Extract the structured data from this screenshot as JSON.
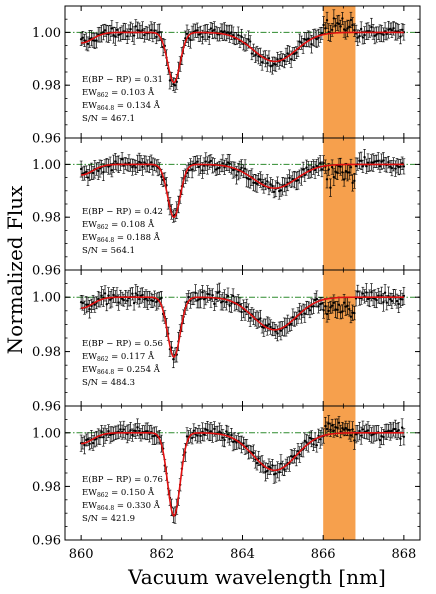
{
  "chart_data": {
    "type": "line",
    "title": "",
    "xlabel": "Vacuum wavelength [nm]",
    "ylabel": "Normalized Flux",
    "xlim": [
      859.6,
      868.4
    ],
    "ylim": [
      0.96,
      1.01
    ],
    "xticks": [
      860,
      862,
      864,
      866,
      868
    ],
    "xtick_labels": [
      "860",
      "862",
      "864",
      "866",
      "868"
    ],
    "yticks": [
      0.96,
      0.98,
      1.0
    ],
    "ytick_labels": [
      "0.96",
      "0.98",
      "1.00"
    ],
    "grid": false,
    "reference_line": {
      "y": 1.0,
      "color": "#2e8b2e",
      "style": "dash-dot"
    },
    "highlight_band": {
      "x_start": 866.0,
      "x_end": 866.8,
      "color": "#f6a04d"
    },
    "colors": {
      "data": "#000000",
      "model": "#e01010"
    },
    "panels": [
      {
        "annotations": [
          {
            "main": "E(BP − RP) = 0.31",
            "sub": ""
          },
          {
            "main": "EW",
            "sub": "862",
            "rest": " = 0.103 Å"
          },
          {
            "main": "EW",
            "sub": "864.8",
            "rest": " = 0.134 Å"
          },
          {
            "main": "S/N = 467.1",
            "sub": ""
          }
        ],
        "dib862_depth": 0.019,
        "dib864_depth": 0.011
      },
      {
        "annotations": [
          {
            "main": "E(BP − RP) = 0.42",
            "sub": ""
          },
          {
            "main": "EW",
            "sub": "862",
            "rest": " = 0.108 Å"
          },
          {
            "main": "EW",
            "sub": "864.8",
            "rest": " = 0.188 Å"
          },
          {
            "main": "S/N = 564.1",
            "sub": ""
          }
        ],
        "dib862_depth": 0.02,
        "dib864_depth": 0.009
      },
      {
        "annotations": [
          {
            "main": "E(BP − RP) = 0.56",
            "sub": ""
          },
          {
            "main": "EW",
            "sub": "862",
            "rest": " = 0.117 Å"
          },
          {
            "main": "EW",
            "sub": "864.8",
            "rest": " = 0.254 Å"
          },
          {
            "main": "S/N = 484.3",
            "sub": ""
          }
        ],
        "dib862_depth": 0.022,
        "dib864_depth": 0.012
      },
      {
        "annotations": [
          {
            "main": "E(BP − RP) = 0.76",
            "sub": ""
          },
          {
            "main": "EW",
            "sub": "862",
            "rest": " = 0.150 Å"
          },
          {
            "main": "EW",
            "sub": "864.8",
            "rest": " = 0.330 Å"
          },
          {
            "main": "S/N = 421.9",
            "sub": ""
          }
        ],
        "dib862_depth": 0.031,
        "dib864_depth": 0.014
      }
    ]
  }
}
